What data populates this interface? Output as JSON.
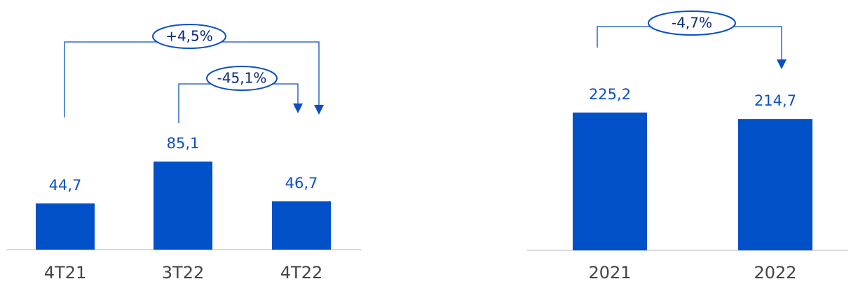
{
  "chart_data": [
    {
      "type": "bar",
      "categories": [
        "4T21",
        "3T22",
        "4T22"
      ],
      "values": [
        44.7,
        85.1,
        46.7
      ],
      "value_labels": [
        "44,7",
        "85,1",
        "46,7"
      ],
      "color": "#0050c8",
      "annotations": [
        "+4,5%",
        "-45,1%"
      ]
    },
    {
      "type": "bar",
      "categories": [
        "2021",
        "2022"
      ],
      "values": [
        225.2,
        214.7
      ],
      "value_labels": [
        "225,2",
        "214,7"
      ],
      "color": "#0050c8",
      "annotations": [
        "-4,7%"
      ]
    }
  ]
}
